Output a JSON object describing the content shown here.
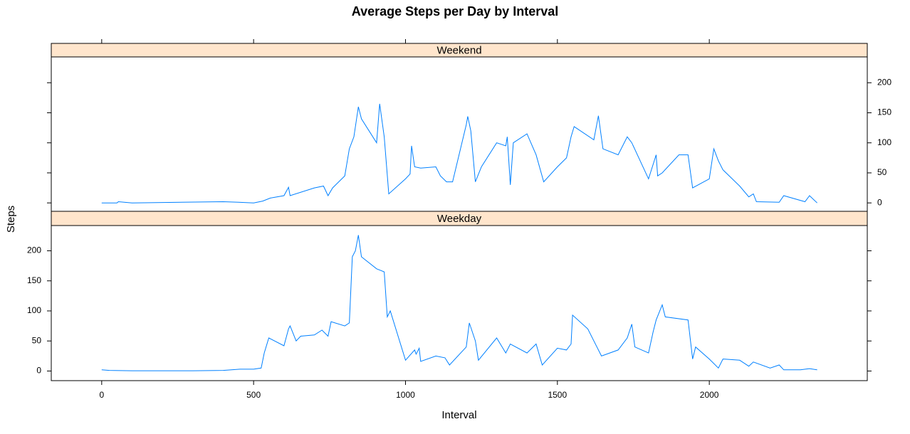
{
  "chart_data": [
    {
      "type": "line",
      "title": "Average Steps per Day by Interval",
      "y_label": "Steps",
      "x": [
        0,
        50,
        55,
        100,
        400,
        450,
        500,
        530,
        555,
        600,
        615,
        620,
        700,
        730,
        745,
        760,
        800,
        815,
        830,
        845,
        855,
        905,
        915,
        930,
        945,
        1000,
        1015,
        1020,
        1030,
        1050,
        1100,
        1115,
        1135,
        1155,
        1200,
        1205,
        1215,
        1230,
        1250,
        1300,
        1330,
        1335,
        1345,
        1355,
        1400,
        1430,
        1455,
        1500,
        1530,
        1545,
        1555,
        1620,
        1635,
        1650,
        1700,
        1730,
        1745,
        1800,
        1825,
        1830,
        1845,
        1900,
        1930,
        1945,
        2000,
        2015,
        2030,
        2045,
        2100,
        2130,
        2145,
        2155,
        2230,
        2245,
        2315,
        2330,
        2355
      ],
      "series": [
        {
          "name": "Weekend",
          "color": "#0080ff",
          "values": [
            0,
            0,
            2,
            0,
            2,
            1,
            0,
            3,
            8,
            12,
            26,
            12,
            25,
            28,
            12,
            25,
            45,
            90,
            110,
            160,
            140,
            100,
            165,
            110,
            15,
            40,
            48,
            95,
            60,
            58,
            60,
            45,
            35,
            35,
            130,
            144,
            120,
            35,
            60,
            100,
            95,
            110,
            30,
            100,
            115,
            80,
            35,
            60,
            75,
            110,
            127,
            105,
            145,
            90,
            80,
            110,
            100,
            40,
            80,
            45,
            50,
            80,
            80,
            25,
            40,
            90,
            70,
            55,
            28,
            10,
            15,
            2,
            1,
            12,
            2,
            12,
            0
          ]
        }
      ],
      "xlim": [
        -166,
        2520
      ],
      "xticks": [
        0,
        500,
        1000,
        1500,
        2000
      ],
      "ylim": [
        -14,
        243
      ],
      "yticks": [
        0,
        50,
        100,
        150,
        200
      ]
    },
    {
      "type": "line",
      "x_label": "Interval",
      "x": [
        0,
        25,
        100,
        300,
        400,
        455,
        500,
        525,
        535,
        550,
        600,
        615,
        620,
        640,
        655,
        700,
        725,
        745,
        755,
        800,
        815,
        825,
        835,
        845,
        855,
        905,
        930,
        940,
        950,
        1000,
        1030,
        1035,
        1045,
        1050,
        1100,
        1130,
        1145,
        1200,
        1210,
        1230,
        1240,
        1300,
        1330,
        1345,
        1400,
        1430,
        1450,
        1500,
        1530,
        1545,
        1550,
        1600,
        1630,
        1645,
        1700,
        1730,
        1745,
        1755,
        1800,
        1815,
        1825,
        1845,
        1855,
        1930,
        1945,
        1955,
        2000,
        2030,
        2045,
        2100,
        2130,
        2145,
        2200,
        2230,
        2245,
        2300,
        2330,
        2355
      ],
      "series": [
        {
          "name": "Weekday",
          "color": "#0080ff",
          "values": [
            2,
            1,
            0.5,
            0.5,
            1,
            3,
            3,
            5,
            30,
            55,
            42,
            70,
            75,
            50,
            58,
            60,
            68,
            58,
            82,
            75,
            80,
            190,
            200,
            226,
            190,
            170,
            165,
            90,
            100,
            18,
            35,
            28,
            38,
            16,
            25,
            22,
            10,
            40,
            80,
            50,
            18,
            55,
            30,
            45,
            30,
            45,
            10,
            38,
            35,
            45,
            93,
            70,
            40,
            25,
            35,
            55,
            78,
            40,
            30,
            65,
            85,
            110,
            90,
            85,
            20,
            40,
            20,
            5,
            20,
            18,
            8,
            15,
            5,
            10,
            2,
            2,
            4,
            2
          ]
        }
      ],
      "xlim": [
        -166,
        2520
      ],
      "xticks": [
        0,
        500,
        1000,
        1500,
        2000
      ],
      "ylim": [
        -16,
        242
      ],
      "yticks": [
        0,
        50,
        100,
        150,
        200
      ]
    }
  ]
}
